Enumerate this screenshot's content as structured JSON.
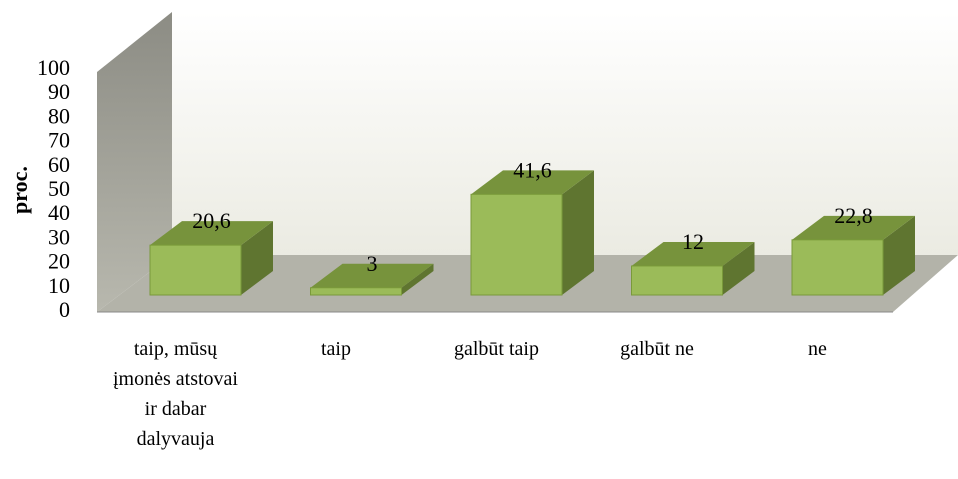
{
  "chart_data": {
    "type": "bar3d",
    "ylabel": "proc.",
    "categories": [
      "taip, mūsų įmonės atstovai ir dabar dalyvauja",
      "taip",
      "galbūt taip",
      "galbūt ne",
      "ne"
    ],
    "values": [
      20.6,
      3,
      41.6,
      12,
      22.8
    ],
    "value_labels": [
      "20,6",
      "3",
      "41,6",
      "12",
      "22,8"
    ],
    "color": "#9bbb59",
    "ylim": [
      0,
      100
    ],
    "yticks": [
      0,
      10,
      20,
      30,
      40,
      50,
      60,
      70,
      80,
      90,
      100
    ]
  }
}
